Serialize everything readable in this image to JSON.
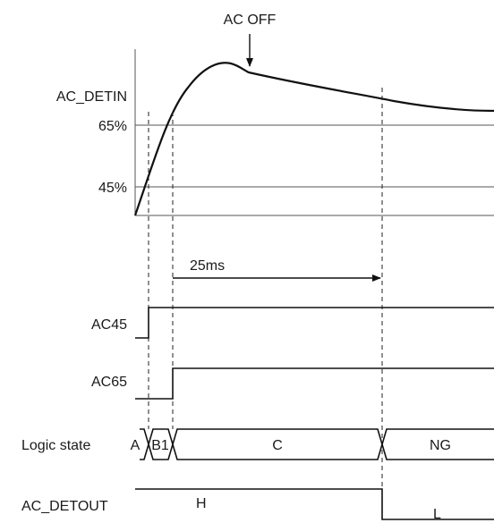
{
  "diagram": {
    "annotations": {
      "ac_off": "AC OFF",
      "interval": "25ms"
    },
    "analog": {
      "signal_label": "AC_DETIN",
      "threshold_high": "65%",
      "threshold_low": "45%"
    },
    "digital": {
      "ac45_label": "AC45",
      "ac65_label": "AC65"
    },
    "logic": {
      "label": "Logic state",
      "states": [
        "A",
        "B1",
        "C",
        "NG"
      ]
    },
    "output": {
      "label": "AC_DETOUT",
      "high": "H",
      "low": "L"
    }
  }
}
